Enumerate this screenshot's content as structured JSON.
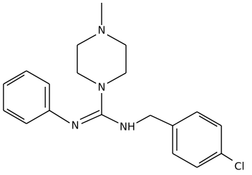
{
  "atoms": {
    "methyl_n": "N",
    "ring_n": "N",
    "imine_n": "N",
    "amine_nh": "NH",
    "chlorine": "Cl"
  }
}
